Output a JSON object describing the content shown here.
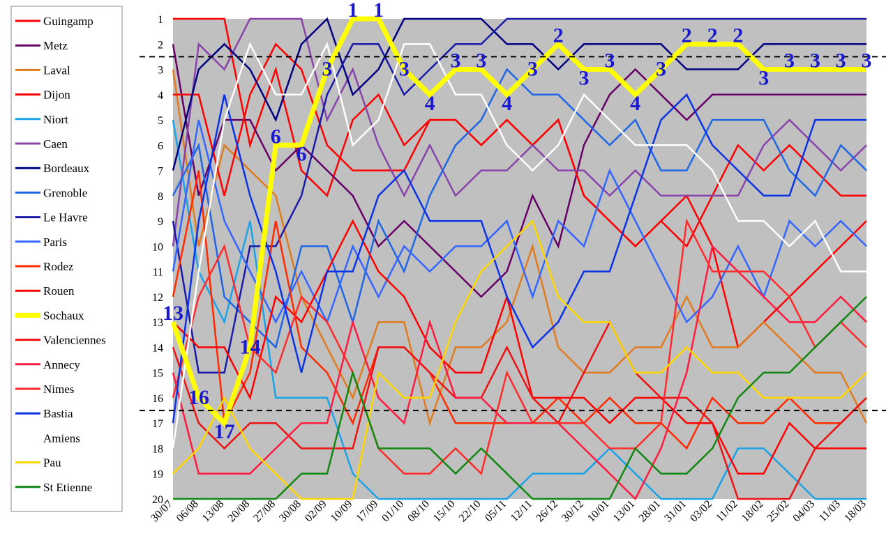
{
  "chart_data": {
    "type": "line",
    "categories": [
      "30/07",
      "06/08",
      "13/08",
      "20/08",
      "27/08",
      "30/08",
      "02/09",
      "10/09",
      "17/09",
      "01/10",
      "08/10",
      "15/10",
      "22/10",
      "05/11",
      "12/11",
      "26/12",
      "30/12",
      "10/01",
      "13/01",
      "28/01",
      "31/01",
      "03/02",
      "11/02",
      "18/02",
      "25/02",
      "04/03",
      "11/03",
      "18/03"
    ],
    "y_ticks": [
      "1",
      "2",
      "3",
      "4",
      "5",
      "6",
      "7",
      "8",
      "9",
      "10",
      "11",
      "12",
      "13",
      "14",
      "15",
      "16",
      "17",
      "18",
      "19",
      "20"
    ],
    "ylim": [
      1,
      20
    ],
    "y_inverted": true,
    "grid": false,
    "background": "#c0c0c0",
    "legend_position": "left",
    "reference_lines": [
      2.5,
      16.5
    ],
    "highlight_series": "Sochaux",
    "highlight_labels": [
      {
        "x": "30/07",
        "label": "13"
      },
      {
        "x": "06/08",
        "label": "16"
      },
      {
        "x": "13/08",
        "label": "17"
      },
      {
        "x": "20/08",
        "label": "14"
      },
      {
        "x": "27/08",
        "label": "6"
      },
      {
        "x": "30/08",
        "label": "6"
      },
      {
        "x": "02/09",
        "label": "3"
      },
      {
        "x": "10/09",
        "label": "1"
      },
      {
        "x": "17/09",
        "label": "1"
      },
      {
        "x": "01/10",
        "label": "3"
      },
      {
        "x": "08/10",
        "label": "4"
      },
      {
        "x": "15/10",
        "label": "3"
      },
      {
        "x": "22/10",
        "label": "3"
      },
      {
        "x": "05/11",
        "label": "4"
      },
      {
        "x": "12/11",
        "label": "3"
      },
      {
        "x": "26/12",
        "label": "2"
      },
      {
        "x": "30/12",
        "label": "3"
      },
      {
        "x": "10/01",
        "label": "3"
      },
      {
        "x": "13/01",
        "label": "4"
      },
      {
        "x": "28/01",
        "label": "3"
      },
      {
        "x": "31/01",
        "label": "2"
      },
      {
        "x": "03/02",
        "label": "2"
      },
      {
        "x": "11/02",
        "label": "2"
      },
      {
        "x": "18/02",
        "label": "3"
      },
      {
        "x": "25/02",
        "label": "3"
      },
      {
        "x": "04/03",
        "label": "3"
      },
      {
        "x": "11/03",
        "label": "3"
      },
      {
        "x": "18/03",
        "label": "3"
      }
    ],
    "series": [
      {
        "name": "Guingamp",
        "color": "#ff0000",
        "values": [
          1,
          1,
          1,
          6,
          3,
          7,
          8,
          5,
          4,
          6,
          5,
          5,
          6,
          5,
          6,
          5,
          8,
          9,
          10,
          9,
          8,
          10,
          14,
          13,
          12,
          11,
          10,
          9
        ]
      },
      {
        "name": "Metz",
        "color": "#660066",
        "values": [
          2,
          8,
          5,
          5,
          7,
          6,
          7,
          8,
          10,
          9,
          10,
          11,
          12,
          11,
          8,
          10,
          6,
          4,
          3,
          4,
          5,
          4,
          4,
          4,
          4,
          4,
          4,
          4
        ]
      },
      {
        "name": "Laval",
        "color": "#e07b20",
        "values": [
          3,
          10,
          6,
          7,
          8,
          12,
          14,
          16,
          13,
          13,
          17,
          14,
          14,
          13,
          10,
          14,
          15,
          15,
          14,
          14,
          12,
          14,
          14,
          13,
          14,
          15,
          15,
          17
        ]
      },
      {
        "name": "Dijon",
        "color": "#ff0000",
        "values": [
          4,
          4,
          8,
          4,
          2,
          3,
          6,
          7,
          7,
          7,
          5,
          5,
          6,
          5,
          6,
          5,
          8,
          9,
          10,
          9,
          10,
          8,
          6,
          7,
          6,
          7,
          8,
          8
        ]
      },
      {
        "name": "Niort",
        "color": "#1aa3e8",
        "values": [
          5,
          11,
          13,
          9,
          16,
          16,
          16,
          19,
          20,
          20,
          20,
          20,
          20,
          20,
          19,
          19,
          19,
          18,
          19,
          20,
          20,
          20,
          18,
          18,
          19,
          20,
          20,
          20
        ]
      },
      {
        "name": "Caen",
        "color": "#8844aa",
        "values": [
          10,
          2,
          3,
          1,
          1,
          1,
          5,
          3,
          6,
          8,
          6,
          8,
          7,
          7,
          6,
          7,
          7,
          8,
          7,
          8,
          8,
          8,
          8,
          6,
          5,
          6,
          7,
          6
        ]
      },
      {
        "name": "Bordeaux",
        "color": "#000080",
        "values": [
          7,
          3,
          2,
          3,
          5,
          2,
          1,
          4,
          3,
          1,
          1,
          1,
          1,
          2,
          2,
          3,
          2,
          2,
          2,
          2,
          3,
          3,
          3,
          2,
          2,
          2,
          2,
          2
        ]
      },
      {
        "name": "Grenoble",
        "color": "#1e66e6",
        "values": [
          8,
          6,
          12,
          13,
          14,
          10,
          10,
          13,
          9,
          11,
          8,
          6,
          5,
          3,
          4,
          4,
          5,
          6,
          5,
          7,
          7,
          5,
          5,
          5,
          7,
          8,
          6,
          7
        ]
      },
      {
        "name": "Le Havre",
        "color": "#1a1aa8",
        "values": [
          9,
          15,
          15,
          10,
          10,
          8,
          4,
          2,
          2,
          4,
          3,
          2,
          2,
          1,
          1,
          1,
          1,
          1,
          1,
          1,
          1,
          1,
          1,
          1,
          1,
          1,
          1,
          1
        ]
      },
      {
        "name": "Paris",
        "color": "#3366ff",
        "values": [
          11,
          5,
          9,
          11,
          13,
          11,
          13,
          10,
          12,
          10,
          11,
          10,
          10,
          9,
          12,
          9,
          10,
          7,
          9,
          11,
          13,
          12,
          10,
          12,
          9,
          10,
          9,
          10
        ]
      },
      {
        "name": "Rodez",
        "color": "#ff2a00",
        "values": [
          12,
          7,
          17,
          15,
          9,
          14,
          15,
          17,
          14,
          14,
          15,
          17,
          17,
          17,
          17,
          16,
          17,
          16,
          17,
          17,
          18,
          16,
          17,
          17,
          16,
          17,
          17,
          16
        ]
      },
      {
        "name": "Rouen",
        "color": "#ff0000",
        "values": [
          13,
          14,
          14,
          16,
          12,
          13,
          11,
          9,
          11,
          12,
          14,
          15,
          15,
          12,
          16,
          16,
          16,
          17,
          16,
          16,
          17,
          17,
          19,
          19,
          17,
          18,
          18,
          18
        ]
      },
      {
        "name": "Sochaux",
        "color": "#ffff00",
        "values": [
          13,
          16,
          17,
          14,
          6,
          6,
          3,
          1,
          1,
          3,
          4,
          3,
          3,
          4,
          3,
          2,
          3,
          3,
          4,
          3,
          2,
          2,
          2,
          3,
          3,
          3,
          3,
          3
        ]
      },
      {
        "name": "Valenciennes",
        "color": "#ee1111",
        "values": [
          14,
          17,
          18,
          17,
          17,
          18,
          18,
          18,
          14,
          14,
          15,
          16,
          16,
          14,
          16,
          17,
          15,
          13,
          15,
          16,
          16,
          17,
          20,
          20,
          20,
          18,
          17,
          16
        ]
      },
      {
        "name": "Annecy",
        "color": "#ff1a40",
        "values": [
          15,
          19,
          19,
          19,
          18,
          17,
          17,
          13,
          16,
          17,
          13,
          16,
          16,
          17,
          17,
          17,
          18,
          19,
          20,
          18,
          15,
          10,
          11,
          12,
          13,
          13,
          12,
          13
        ]
      },
      {
        "name": "Nimes",
        "color": "#ff2a2a",
        "values": [
          16,
          12,
          10,
          14,
          15,
          12,
          13,
          15,
          18,
          19,
          19,
          18,
          19,
          15,
          17,
          17,
          17,
          18,
          18,
          17,
          9,
          11,
          11,
          11,
          12,
          14,
          13,
          14
        ]
      },
      {
        "name": "Bastia",
        "color": "#0a33e6",
        "values": [
          17,
          9,
          4,
          8,
          11,
          15,
          11,
          11,
          8,
          7,
          9,
          9,
          9,
          12,
          14,
          13,
          11,
          11,
          8,
          5,
          4,
          6,
          7,
          8,
          8,
          5,
          5,
          5
        ]
      },
      {
        "name": "Amiens",
        "color": "#ffffff",
        "values": [
          18,
          11,
          5,
          2,
          4,
          4,
          2,
          6,
          5,
          2,
          2,
          4,
          4,
          6,
          7,
          6,
          4,
          5,
          6,
          6,
          6,
          7,
          9,
          9,
          10,
          9,
          11,
          11
        ]
      },
      {
        "name": "Pau",
        "color": "#ffd700",
        "values": [
          19,
          18,
          16,
          18,
          19,
          20,
          20,
          20,
          15,
          16,
          16,
          13,
          11,
          10,
          9,
          12,
          13,
          13,
          15,
          15,
          14,
          15,
          15,
          16,
          16,
          16,
          16,
          15
        ]
      },
      {
        "name": "St Etienne",
        "color": "#118811",
        "values": [
          20,
          20,
          20,
          20,
          20,
          19,
          19,
          15,
          18,
          18,
          18,
          19,
          18,
          19,
          20,
          20,
          20,
          20,
          18,
          19,
          19,
          18,
          16,
          15,
          15,
          14,
          13,
          12
        ]
      }
    ]
  }
}
